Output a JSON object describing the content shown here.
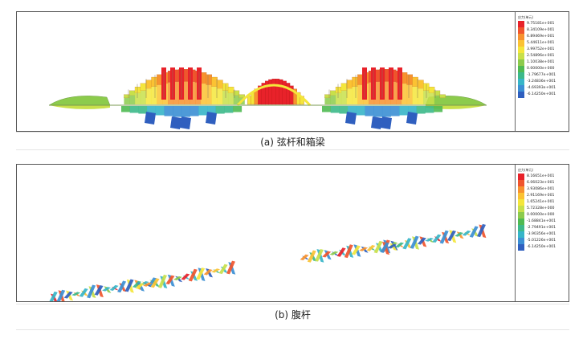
{
  "panels": [
    {
      "caption": "(a) 弦杆和箱梁",
      "legend": {
        "title": "应力(单元)",
        "entries": [
          {
            "label": "9.75181e+001",
            "color": "#e8222a"
          },
          {
            "label": "8.34109e+001",
            "color": "#f0552d"
          },
          {
            "label": "6.89469e+001",
            "color": "#f7922f"
          },
          {
            "label": "5.44611e+001",
            "color": "#fbc233"
          },
          {
            "label": "3.99752e+001",
            "color": "#f4e63b"
          },
          {
            "label": "2.54896e+001",
            "color": "#c8e04a"
          },
          {
            "label": "1.10038e+001",
            "color": "#8ccb4c"
          },
          {
            "label": "0.00000e+000",
            "color": "#4fba52"
          },
          {
            "label": "-1.79677e+001",
            "color": "#3cb98a"
          },
          {
            "label": "-3.24836e+001",
            "color": "#37b5c8"
          },
          {
            "label": "-4.69393e+001",
            "color": "#3b8fd4"
          },
          {
            "label": "-6.14250e+001",
            "color": "#2f5fbf"
          }
        ]
      }
    },
    {
      "caption": "(b) 腹杆",
      "legend": {
        "title": "应力(单元)",
        "entries": [
          {
            "label": "8.16651e+001",
            "color": "#e8222a"
          },
          {
            "label": "6.06023e+001",
            "color": "#f0552d"
          },
          {
            "label": "3.93086e+001",
            "color": "#f7922f"
          },
          {
            "label": "2.91169e+001",
            "color": "#fbc233"
          },
          {
            "label": "1.65241e+001",
            "color": "#f4e63b"
          },
          {
            "label": "5.72328e+000",
            "color": "#c8e04a"
          },
          {
            "label": "0.00000e+000",
            "color": "#8ccb4c"
          },
          {
            "label": "-1.68841e+001",
            "color": "#4fba52"
          },
          {
            "label": "-2.79491e+001",
            "color": "#3cb98a"
          },
          {
            "label": "-3.90356e+001",
            "color": "#37b5c8"
          },
          {
            "label": "-5.01226e+001",
            "color": "#3b8fd4"
          },
          {
            "label": "-6.14250e+001",
            "color": "#2f5fbf"
          }
        ]
      }
    }
  ]
}
